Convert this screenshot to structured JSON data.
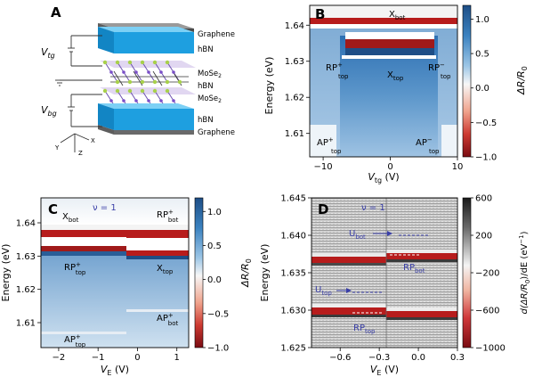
{
  "panelA": {
    "letter": "A",
    "layers": [
      "Graphene",
      "hBN",
      "MoSe",
      "hBN",
      "MoSe",
      "hBN",
      "Graphene"
    ],
    "sub2": "2",
    "V_tg": "V",
    "V_tg_sub": "tg",
    "V_bg": "V",
    "V_bg_sub": "bg",
    "axes": {
      "x": "X",
      "y": "Y",
      "z": "Z"
    }
  },
  "panelB": {
    "letter": "B",
    "ylabel": "Energy (eV)",
    "xlabel_main": "V",
    "xlabel_sub": "tg",
    "xlabel_unit": " (V)",
    "cbar_label": "ΔR/R",
    "cbar_label_sub": "0",
    "cbar_ticks": [
      "1.0",
      "0.5",
      "0.0",
      "−0.5",
      "−1.0"
    ],
    "labels": {
      "Xbot": {
        "main": "X",
        "sub": "bot"
      },
      "RPtop_plus": {
        "main": "RP",
        "sup": "+",
        "sub": "top"
      },
      "Xtop": {
        "main": "X",
        "sub": "top"
      },
      "RPtop_minus": {
        "main": "RP",
        "sup": "−",
        "sub": "top"
      },
      "APtop_plus": {
        "main": "AP",
        "sup": "+",
        "sub": "top"
      },
      "APtop_minus": {
        "main": "AP",
        "sup": "−",
        "sub": "top"
      }
    }
  },
  "panelC": {
    "letter": "C",
    "ylabel": "Energy (eV)",
    "xlabel_main": "V",
    "xlabel_sub": "E",
    "xlabel_unit": " (V)",
    "cbar_label": "ΔR/R",
    "cbar_label_sub": "0",
    "cbar_ticks": [
      "1.0",
      "0.5",
      "0.0",
      "−0.5",
      "−1.0"
    ],
    "nu": "ν = 1",
    "labels": {
      "Xbot": {
        "main": "X",
        "sub": "bot"
      },
      "RPbot_plus": {
        "main": "RP",
        "sup": "+",
        "sub": "bot"
      },
      "RPtop_plus": {
        "main": "RP",
        "sup": "+",
        "sub": "top"
      },
      "Xtop": {
        "main": "X",
        "sub": "top"
      },
      "APbot_plus": {
        "main": "AP",
        "sup": "+",
        "sub": "bot"
      },
      "APtop_plus": {
        "main": "AP",
        "sup": "+",
        "sub": "top"
      }
    }
  },
  "panelD": {
    "letter": "D",
    "ylabel": "Energy (eV)",
    "xlabel_main": "V",
    "xlabel_sub": "E",
    "xlabel_unit": " (V)",
    "cbar_label": "d(ΔR/R",
    "cbar_label_sub": "0",
    "cbar_label_tail": ")/dE (eV",
    "cbar_label_sup": "−1",
    "cbar_label_end": ")",
    "cbar_ticks": [
      "600",
      "200",
      "−200",
      "−600",
      "−1000"
    ],
    "nu": "ν = 1",
    "labels": {
      "Ubot": {
        "main": "U",
        "sub": "bot"
      },
      "RPbot": {
        "main": "RP",
        "sub": "bot"
      },
      "Utop": {
        "main": "U",
        "sub": "top"
      },
      "RPtop": {
        "main": "RP",
        "sub": "top"
      }
    }
  },
  "colors": {
    "map_red": "#b71c1c",
    "map_blue": "#1f5f9e",
    "map_white": "#f7f7f7",
    "annotation_blue": "#3a3fa8",
    "hbn_blue": "#1e9fe0",
    "graphene_gray": "#555555"
  },
  "chart_data": [
    {
      "panel": "B",
      "type": "heatmap",
      "title": "",
      "xlabel": "Vtg (V)",
      "ylabel": "Energy (eV)",
      "colorbar_label": "ΔR/R0",
      "x_ticks": [
        -10,
        0,
        10
      ],
      "y_ticks": [
        1.61,
        1.62,
        1.63,
        1.64
      ],
      "xlim": [
        -12,
        10
      ],
      "ylim": [
        1.6035,
        1.6455
      ],
      "clim": [
        -1.0,
        1.2
      ],
      "colorbar_ticks": [
        -1.0,
        -0.5,
        0.0,
        0.5,
        1.0
      ],
      "features": [
        {
          "label": "Xbot",
          "energy": 1.6395,
          "x_range": [
            -12,
            10
          ]
        },
        {
          "label": "Xtop",
          "energy": 1.6315,
          "x_range": [
            -6.5,
            6.5
          ]
        },
        {
          "label": "RPtop+",
          "energy": 1.6315,
          "x_range": [
            -8,
            -6
          ]
        },
        {
          "label": "RPtop-",
          "energy": 1.6315,
          "x_range": [
            6,
            8
          ]
        },
        {
          "label": "APtop+",
          "energy": 1.607,
          "x_range": [
            -12,
            -8
          ]
        },
        {
          "label": "APtop-",
          "energy": 1.607,
          "x_range": [
            8,
            10
          ]
        }
      ]
    },
    {
      "panel": "C",
      "type": "heatmap",
      "title": "ν = 1",
      "xlabel": "VE (V)",
      "ylabel": "Energy (eV)",
      "colorbar_label": "ΔR/R0",
      "x_ticks": [
        -2,
        -1,
        0,
        1
      ],
      "y_ticks": [
        1.61,
        1.62,
        1.63,
        1.64
      ],
      "xlim": [
        -2.45,
        1.3
      ],
      "ylim": [
        1.6025,
        1.6475
      ],
      "clim": [
        -1.0,
        1.2
      ],
      "colorbar_ticks": [
        -1.0,
        -0.5,
        0.0,
        0.5,
        1.0
      ],
      "features": [
        {
          "label": "Xbot",
          "energy": 1.6395,
          "x_range": [
            -2.45,
            1.3
          ]
        },
        {
          "label": "RPtop+",
          "energy": 1.6315,
          "x_range": [
            -2.45,
            -0.25
          ]
        },
        {
          "label": "Xtop",
          "energy": 1.6305,
          "x_range": [
            -0.25,
            1.3
          ]
        },
        {
          "label": "RPbot+",
          "energy": 1.6395,
          "x_range": [
            -0.25,
            1.3
          ]
        },
        {
          "label": "APbot+",
          "energy": 1.613,
          "x_range": [
            -0.25,
            1.3
          ]
        },
        {
          "label": "APtop+",
          "energy": 1.606,
          "x_range": [
            -2.45,
            -0.25
          ]
        }
      ]
    },
    {
      "panel": "D",
      "type": "heatmap",
      "title": "ν = 1",
      "xlabel": "VE (V)",
      "ylabel": "Energy (eV)",
      "colorbar_label": "d(ΔR/R0)/dE (eV^-1)",
      "x_ticks": [
        -0.6,
        -0.3,
        0.0,
        0.3
      ],
      "y_ticks": [
        1.625,
        1.63,
        1.635,
        1.64,
        1.645
      ],
      "xlim": [
        -0.82,
        0.3
      ],
      "ylim": [
        1.625,
        1.645
      ],
      "clim": [
        -1000,
        600
      ],
      "colorbar_ticks": [
        -1000,
        -600,
        -200,
        200,
        600
      ],
      "features": [
        {
          "label": "Ubot",
          "energy": 1.6398,
          "x_range": [
            -0.25,
            0.05
          ]
        },
        {
          "label": "RPbot",
          "energy": 1.6375,
          "x_range": [
            -0.25,
            0.3
          ]
        },
        {
          "label": "Utop",
          "energy": 1.6325,
          "x_range": [
            -0.82,
            -0.25
          ]
        },
        {
          "label": "RPtop",
          "energy": 1.6297,
          "x_range": [
            -0.82,
            -0.25
          ]
        }
      ]
    }
  ]
}
